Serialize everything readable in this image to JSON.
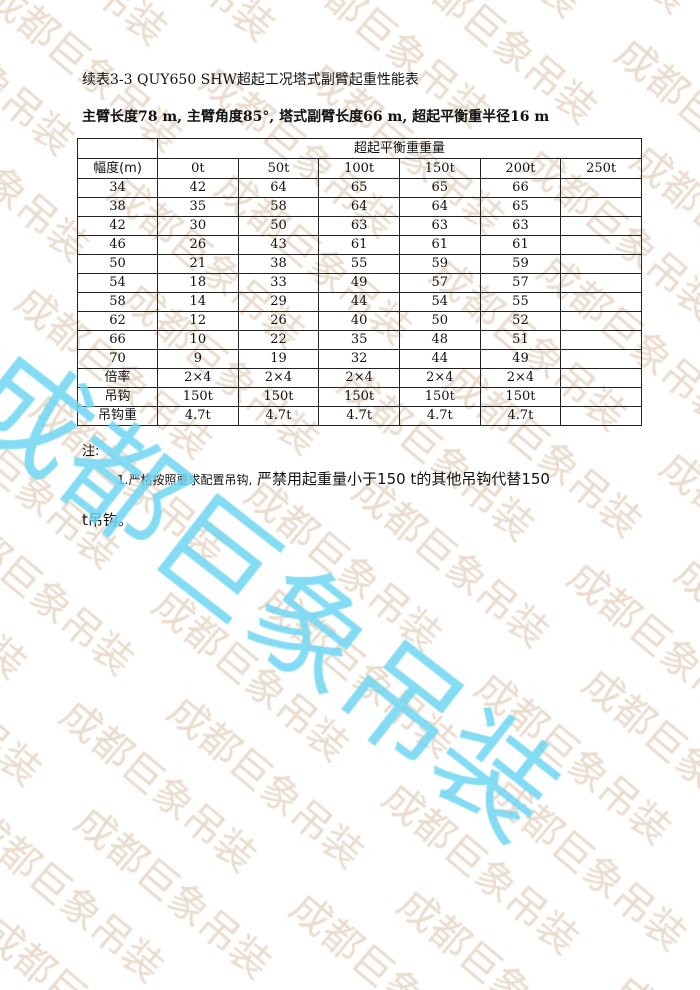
{
  "watermark": {
    "text": "成都巨象吊装",
    "big_color": "#6fd6f2",
    "small_color": "#eadccd"
  },
  "document": {
    "title": "续表3-3 QUY650 SHW超起工况塔式副臂起重性能表",
    "subtitle": "主臂长度78 m, 主臂角度85°, 塔式副臂长度66 m, 超起平衡重半径16 m"
  },
  "table": {
    "group_header": "超起平衡重重量",
    "headers": [
      "幅度(m)",
      "0t",
      "50t",
      "100t",
      "150t",
      "200t",
      "250t"
    ],
    "rows": [
      [
        "34",
        "42",
        "64",
        "65",
        "65",
        "66",
        ""
      ],
      [
        "38",
        "35",
        "58",
        "64",
        "64",
        "65",
        ""
      ],
      [
        "42",
        "30",
        "50",
        "63",
        "63",
        "63",
        ""
      ],
      [
        "46",
        "26",
        "43",
        "61",
        "61",
        "61",
        ""
      ],
      [
        "50",
        "21",
        "38",
        "55",
        "59",
        "59",
        ""
      ],
      [
        "54",
        "18",
        "33",
        "49",
        "57",
        "57",
        ""
      ],
      [
        "58",
        "14",
        "29",
        "44",
        "54",
        "55",
        ""
      ],
      [
        "62",
        "12",
        "26",
        "40",
        "50",
        "52",
        ""
      ],
      [
        "66",
        "10",
        "22",
        "35",
        "48",
        "51",
        ""
      ],
      [
        "70",
        "9",
        "19",
        "32",
        "44",
        "49",
        ""
      ],
      [
        "倍率",
        "2×4",
        "2×4",
        "2×4",
        "2×4",
        "2×4",
        ""
      ],
      [
        "吊钩",
        "150t",
        "150t",
        "150t",
        "150t",
        "150t",
        ""
      ],
      [
        "吊钩重",
        "4.7t",
        "4.7t",
        "4.7t",
        "4.7t",
        "4.7t",
        ""
      ]
    ]
  },
  "notes": {
    "label": "注:",
    "item1_prefix": "1.严格按照要求配置吊钩,",
    "item1_rest": " 严禁用起重量小于150  t的其他吊钩代替150",
    "item1_cont": "t吊钩。"
  }
}
